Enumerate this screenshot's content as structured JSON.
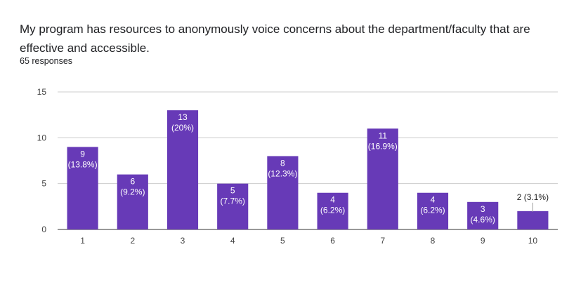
{
  "header": {
    "question": "My program has resources to anonymously voice concerns about the department/faculty that are effective and accessible.",
    "responses": "65 responses"
  },
  "chart_data": {
    "type": "bar",
    "categories": [
      "1",
      "2",
      "3",
      "4",
      "5",
      "6",
      "7",
      "8",
      "9",
      "10"
    ],
    "values": [
      9,
      6,
      13,
      5,
      8,
      4,
      11,
      4,
      3,
      2
    ],
    "data_labels": [
      "9 (13.8%)",
      "6 (9.2%)",
      "13 (20%)",
      "5 (7.7%)",
      "8 (12.3%)",
      "4 (6.2%)",
      "11 (16.9%)",
      "4 (6.2%)",
      "3 (4.6%)",
      "2 (3.1%)"
    ],
    "ylim": [
      0,
      15
    ],
    "yticks": [
      0,
      5,
      10,
      15
    ],
    "grid": true,
    "bar_color": "#673ab7"
  }
}
